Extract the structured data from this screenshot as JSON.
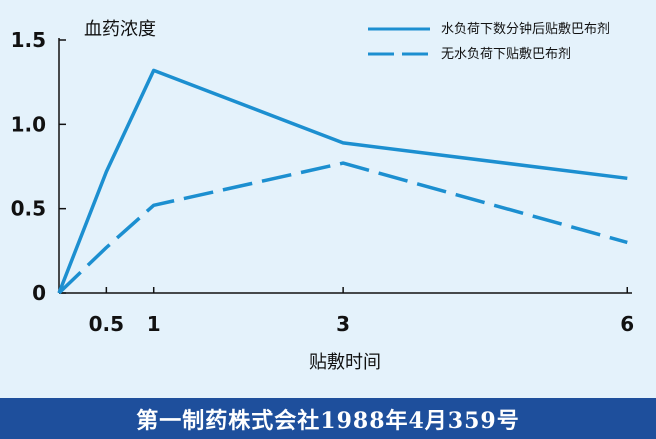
{
  "chart_data": {
    "type": "line",
    "ylabel": "血药浓度",
    "xlabel": "贴敷时间",
    "x_ticks": [
      "0.5",
      "1",
      "3",
      "6"
    ],
    "y_ticks": [
      "1.5",
      "1.0",
      "0.5",
      "0"
    ],
    "xlim": [
      0,
      6.05
    ],
    "ylim": [
      0,
      1.5
    ],
    "series": [
      {
        "name": "水负荷下数分钟后贴敷巴布剂",
        "style": "solid",
        "color": "#1c8fd0",
        "x": [
          0,
          0.5,
          1,
          3,
          6
        ],
        "y": [
          0,
          0.72,
          1.32,
          0.89,
          0.68
        ]
      },
      {
        "name": "无水负荷下贴敷巴布剂",
        "style": "dashed",
        "color": "#1c8fd0",
        "x": [
          0,
          0.5,
          1,
          3,
          6
        ],
        "y": [
          0,
          0.27,
          0.52,
          0.77,
          0.3
        ]
      }
    ],
    "legend_position": "top-right",
    "grid": false
  },
  "footer": {
    "caption": "第一制药株式会社1988年4月359号"
  }
}
